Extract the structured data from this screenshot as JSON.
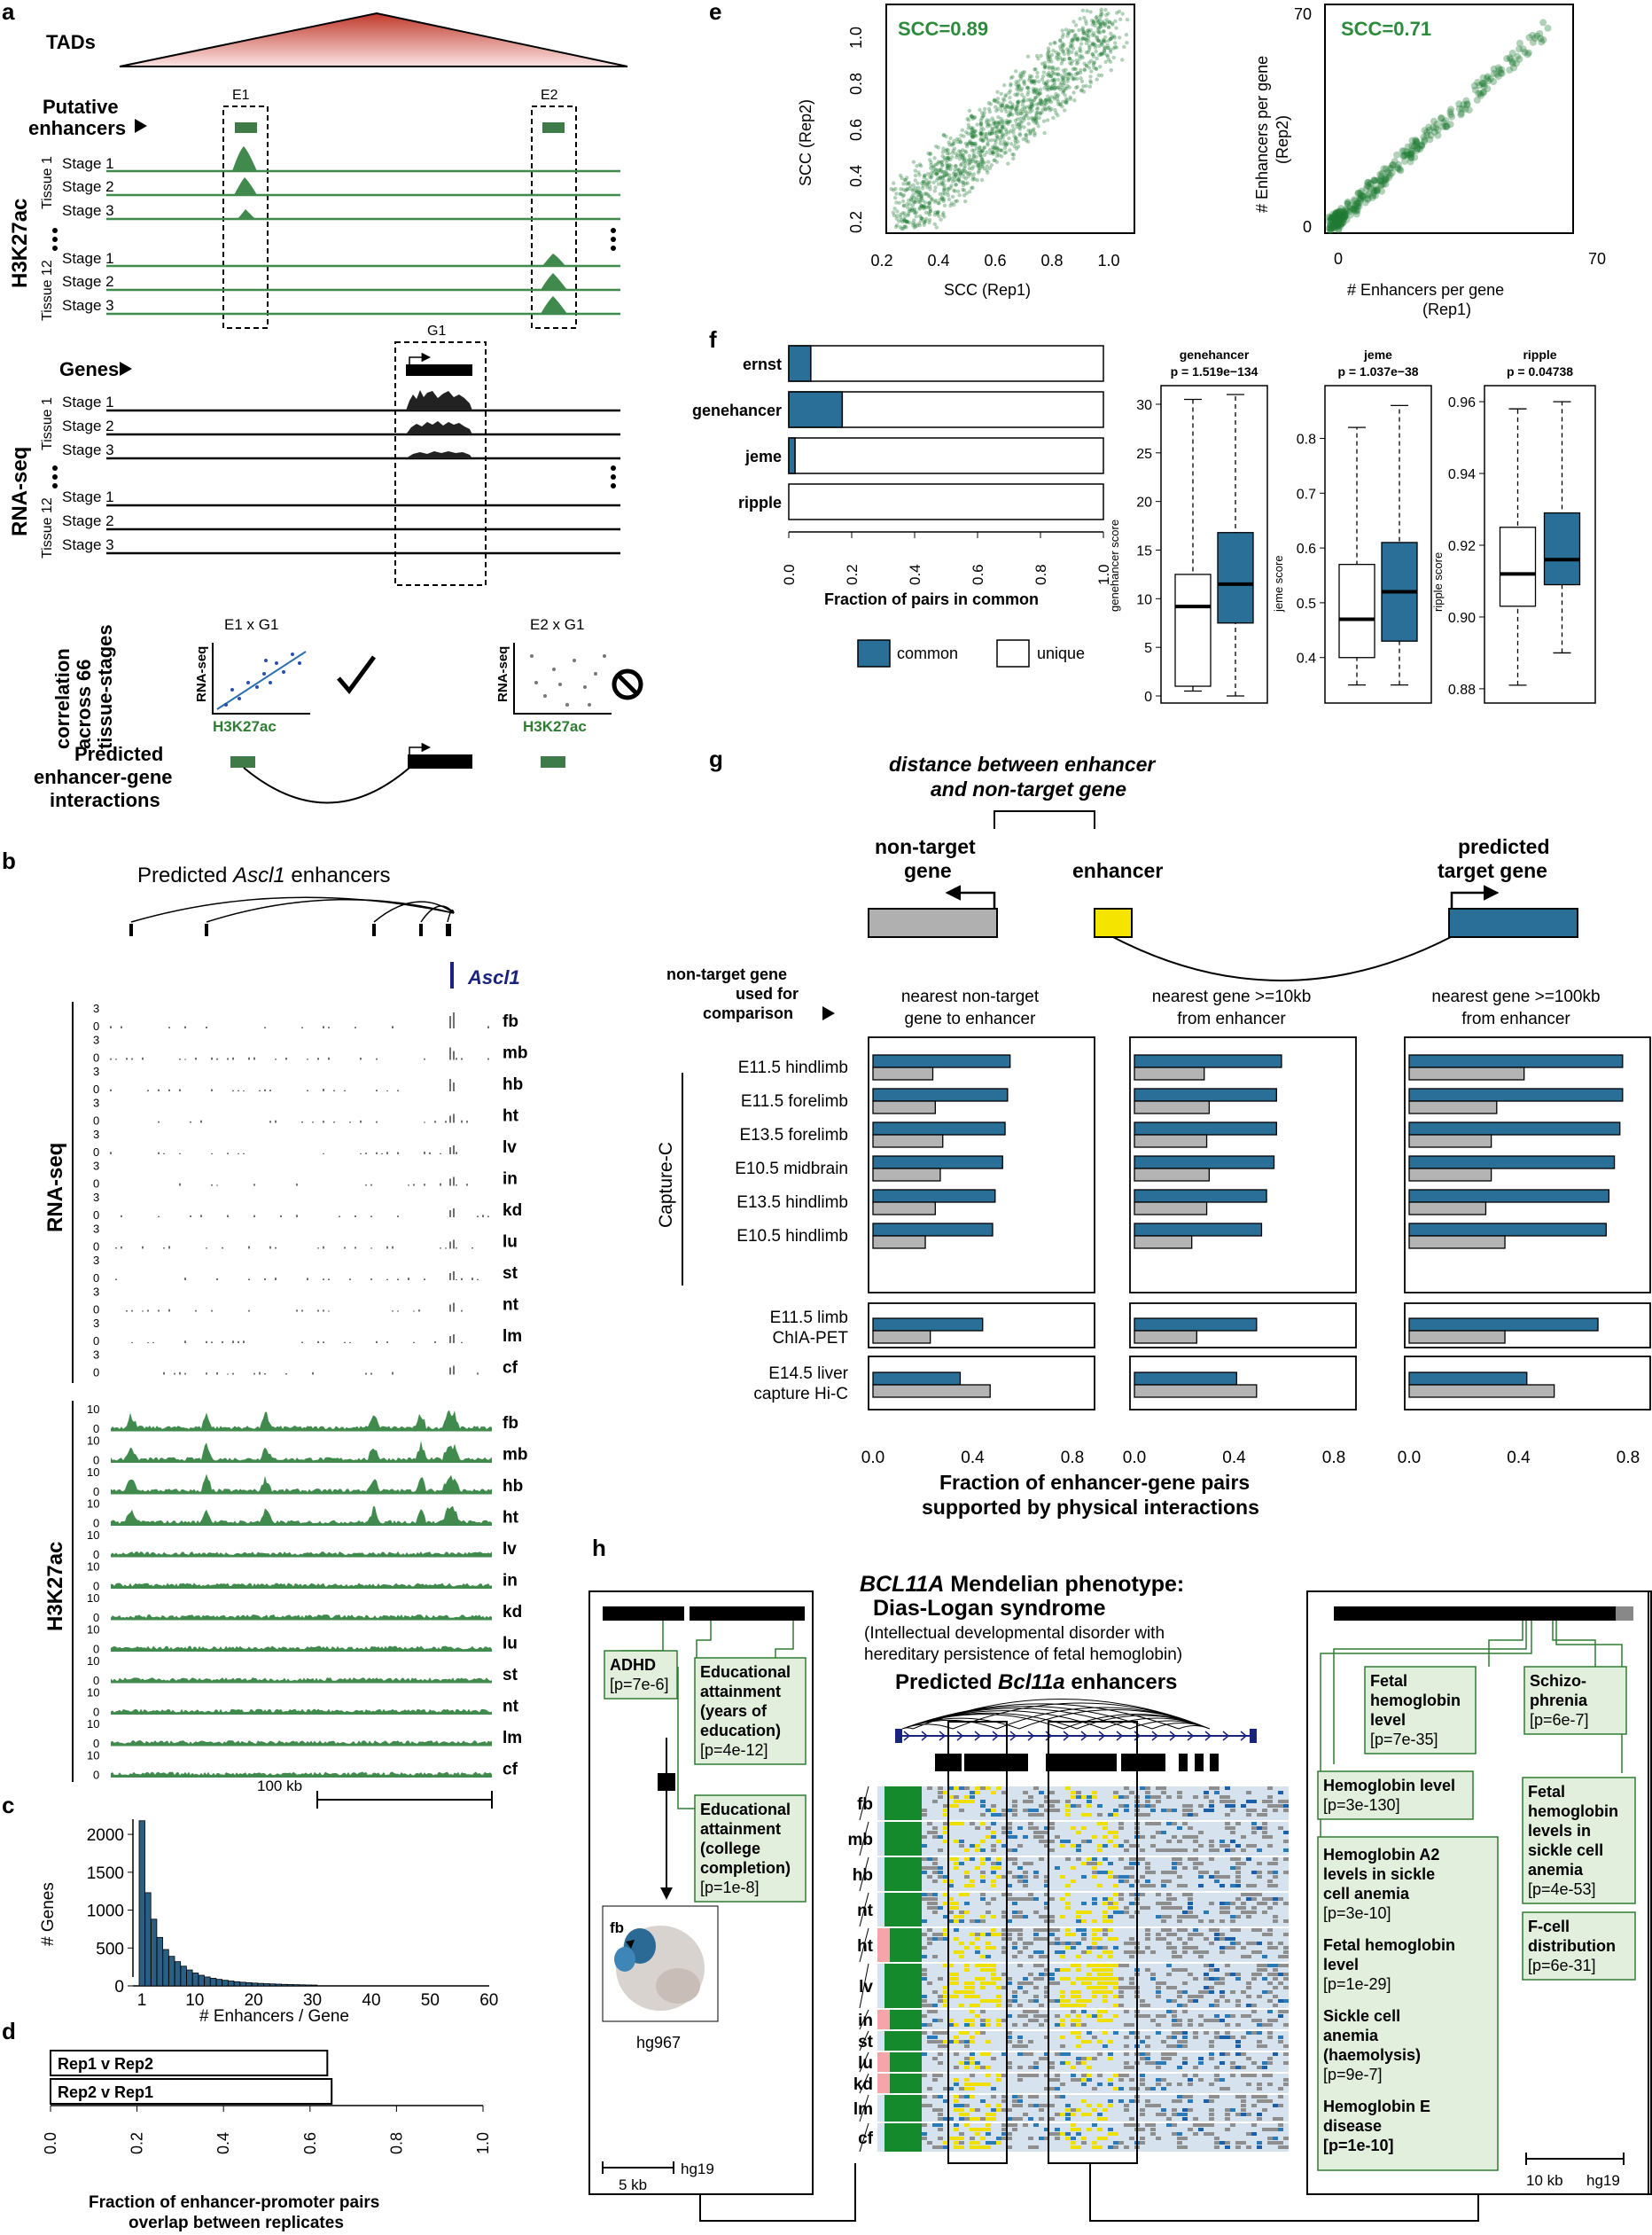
{
  "panel_letters": [
    "a",
    "b",
    "c",
    "d",
    "e",
    "f",
    "g",
    "h"
  ],
  "panel_a": {
    "tads": "TADs",
    "putative": "Putative",
    "enhancers": "enhancers",
    "e1": "E1",
    "e2": "E2",
    "g1": "G1",
    "h3k27ac": "H3K27ac",
    "rnaseq": "RNA-seq",
    "tissue1": "Tissue 1",
    "tissue12": "Tissue 12",
    "stages": [
      "Stage 1",
      "Stage 2",
      "Stage 3"
    ],
    "genes": "Genes",
    "corr": [
      "correlation",
      "across 66",
      "tissue-stages"
    ],
    "e1g1": "E1 x G1",
    "e2g1": "E2 x G1",
    "ax_y": "RNA-seq",
    "ax_x": "H3K27ac",
    "pred": [
      "Predicted",
      "enhancer-gene",
      "interactions"
    ]
  },
  "panel_b": {
    "title_pre": "Predicted ",
    "title_it": "Ascl1",
    "title_post": " enhancers",
    "gene": "Ascl1",
    "rna_label": "RNA-seq",
    "h3_label": "H3K27ac",
    "tissues": [
      "fb",
      "mb",
      "hb",
      "ht",
      "lv",
      "in",
      "kd",
      "lu",
      "st",
      "nt",
      "lm",
      "cf"
    ],
    "rna_ticks": [
      "3",
      "0"
    ],
    "h3_ticks": [
      "10",
      "0"
    ],
    "scale": "100 kb"
  },
  "panel_c": {
    "chart_data": {
      "type": "bar",
      "xlabel": "# Enhancers / Gene",
      "ylabel": "# Genes",
      "xticks": [
        "1",
        "10",
        "20",
        "30",
        "40",
        "50",
        "60"
      ],
      "yticks": [
        "0",
        "500",
        "1000",
        "1500",
        "2000"
      ],
      "ylim": [
        0,
        2200
      ],
      "x": [
        1,
        2,
        3,
        4,
        5,
        6,
        7,
        8,
        9,
        10,
        11,
        12,
        13,
        14,
        15,
        16,
        17,
        18,
        19,
        20,
        21,
        22,
        23,
        24,
        25,
        26,
        27,
        28,
        29,
        30
      ],
      "values": [
        2180,
        1230,
        880,
        640,
        480,
        390,
        320,
        260,
        210,
        170,
        140,
        118,
        100,
        86,
        74,
        64,
        55,
        48,
        42,
        37,
        33,
        29,
        26,
        23,
        20,
        18,
        16,
        14,
        12,
        11
      ]
    }
  },
  "panel_d": {
    "chart_data": {
      "type": "bar",
      "categories": [
        "Rep1 v Rep2",
        "Rep2 v Rep1"
      ],
      "values": [
        0.64,
        0.65
      ],
      "xlabel": "Fraction of enhancer-promoter pairs overlap between replicates",
      "xlim": [
        0,
        1
      ],
      "xticks": [
        "0.0",
        "0.2",
        "0.4",
        "0.6",
        "0.8",
        "1.0"
      ]
    },
    "xlabel_lines": [
      "Fraction of enhancer-promoter pairs",
      "overlap between replicates"
    ]
  },
  "panel_e": {
    "left": {
      "scc": "SCC=0.89",
      "xlabel": "SCC (Rep1)",
      "ylabel": "SCC (Rep2)",
      "xticks": [
        "0.2",
        "0.4",
        "0.6",
        "0.8",
        "1.0"
      ],
      "yticks": [
        "0.2",
        "0.4",
        "0.6",
        "0.8",
        "1.0"
      ]
    },
    "right": {
      "scc": "SCC=0.71",
      "xlabel_lines": [
        "# Enhancers per gene",
        "(Rep1)"
      ],
      "ylabel_lines": [
        "# Enhancers per gene",
        "(Rep2)"
      ],
      "xticks": [
        "0",
        "70"
      ],
      "yticks": [
        "0",
        "70"
      ]
    },
    "color": "#2e8b3e"
  },
  "panel_f": {
    "chart_data": {
      "type": "bar",
      "categories": [
        "ernst",
        "genehancer",
        "jeme",
        "ripple"
      ],
      "series": [
        {
          "name": "common",
          "values": [
            0.07,
            0.17,
            0.02,
            0.0
          ]
        },
        {
          "name": "unique",
          "values": [
            0.93,
            0.83,
            0.98,
            1.0
          ]
        }
      ],
      "xlim": [
        0,
        1
      ],
      "xlabel": "Fraction of pairs in common"
    },
    "xticks": [
      "0.0",
      "0.2",
      "0.4",
      "0.6",
      "0.8",
      "1.0"
    ],
    "legend": [
      "common",
      "unique"
    ],
    "boxes": [
      {
        "name": "genehancer",
        "p": "p = 1.519e−134",
        "ylabel": "genehancer score",
        "yticks": [
          "0",
          "5",
          "10",
          "15",
          "20",
          "25",
          "30"
        ]
      },
      {
        "name": "jeme",
        "p": "p = 1.037e−38",
        "ylabel": "jeme score",
        "yticks": [
          "0.4",
          "0.5",
          "0.6",
          "0.7",
          "0.8"
        ]
      },
      {
        "name": "ripple",
        "p": "p = 0.04738",
        "ylabel": "ripple score",
        "yticks": [
          "0.88",
          "0.90",
          "0.92",
          "0.94",
          "0.96"
        ]
      }
    ],
    "blue": "#2a6f97"
  },
  "panel_g": {
    "distance_lines": [
      "distance between enhancer",
      "and non-target gene"
    ],
    "nontarget": [
      "non-target",
      "gene"
    ],
    "enhancer": "enhancer",
    "predicted": [
      "predicted",
      "target gene"
    ],
    "used_for": [
      "non-target gene",
      "used for",
      "comparison"
    ],
    "col_titles": [
      [
        "nearest non-target",
        "gene to enhancer"
      ],
      [
        "nearest gene >=10kb",
        "from enhancer"
      ],
      [
        "nearest gene >=100kb",
        "from enhancer"
      ]
    ],
    "capture_c": "Capture-C",
    "rows": [
      "E11.5 hindlimb",
      "E11.5 forelimb",
      "E13.5 forelimb",
      "E10.5 midbrain",
      "E13.5 hindlimb",
      "E10.5 hindlimb"
    ],
    "chia": [
      "E11.5 limb",
      "ChIA-PET"
    ],
    "liver": [
      "E14.5 liver",
      "capture Hi-C"
    ],
    "xticks": [
      "0.0",
      "0.4",
      "0.8"
    ],
    "xlabel": [
      "Fraction of enhancer-gene pairs",
      "supported by physical interactions"
    ],
    "chart_data": {
      "type": "bar",
      "categories": [
        "E11.5 hindlimb",
        "E11.5 forelimb",
        "E13.5 forelimb",
        "E10.5 midbrain",
        "E13.5 hindlimb",
        "E10.5 hindlimb",
        "E11.5 limb ChIA-PET",
        "E14.5 liver capture Hi-C"
      ],
      "xlim": [
        0,
        0.8
      ],
      "panels": [
        {
          "name": "nearest non-target gene to enhancer",
          "predicted": [
            0.55,
            0.54,
            0.53,
            0.52,
            0.49,
            0.48,
            0.44,
            0.35
          ],
          "nontarget": [
            0.24,
            0.25,
            0.28,
            0.27,
            0.25,
            0.21,
            0.23,
            0.47
          ]
        },
        {
          "name": "nearest gene >=10kb from enhancer",
          "predicted": [
            0.59,
            0.57,
            0.57,
            0.56,
            0.53,
            0.51,
            0.49,
            0.41
          ],
          "nontarget": [
            0.28,
            0.3,
            0.29,
            0.3,
            0.29,
            0.23,
            0.25,
            0.49
          ]
        },
        {
          "name": "nearest gene >=100kb from enhancer",
          "predicted": [
            0.78,
            0.78,
            0.77,
            0.75,
            0.73,
            0.72,
            0.69,
            0.43
          ],
          "nontarget": [
            0.42,
            0.32,
            0.3,
            0.3,
            0.28,
            0.35,
            0.35,
            0.53
          ]
        }
      ]
    }
  },
  "panel_h": {
    "adhd": [
      "ADHD",
      "[p=7e-6]"
    ],
    "edu1": [
      "Educational",
      "attainment",
      "(years of",
      "education)",
      "[p=4e-12]"
    ],
    "edu2": [
      "Educational",
      "attainment",
      "(college",
      "completion)",
      "[p=1e-8]"
    ],
    "fb": "fb",
    "hg967": "hg967",
    "scale_left": "5 kb",
    "hg19": "hg19",
    "title1_it": "BCL11A",
    "title1_rest": " Mendelian phenotype:",
    "title2": "Dias-Logan syndrome",
    "sub": [
      "(Intellectual developmental disorder with",
      "hereditary persistence of fetal hemoglobin)"
    ],
    "pred_pre": "Predicted ",
    "pred_it": "Bcl11a",
    "pred_post": " enhancers",
    "tissues": [
      "fb",
      "mb",
      "hb",
      "nt",
      "ht",
      "lv",
      "in",
      "st",
      "lu",
      "kd",
      "lm",
      "cf"
    ],
    "fhl": [
      "Fetal",
      "hemoglobin",
      "level",
      "[p=7e-35]"
    ],
    "schizo": [
      "Schizo-",
      "phrenia",
      "[p=6e-7]"
    ],
    "hbl": [
      "Hemoglobin level",
      "[p=3e-130]"
    ],
    "sickle": [
      "Fetal",
      "hemoglobin",
      "levels in",
      "sickle cell",
      "anemia",
      "[p=4e-53]"
    ],
    "fcell": [
      "F-cell",
      "distribution",
      "[p=6e-31]"
    ],
    "hba2": [
      "Hemoglobin A2",
      "levels in sickle",
      "cell anemia",
      "[p=3e-10]"
    ],
    "fhl2": [
      "Fetal hemoglobin",
      "level",
      "[p=1e-29]"
    ],
    "sca": [
      "Sickle cell",
      "anemia",
      "(haemolysis)",
      "[p=9e-7]"
    ],
    "hbe": [
      "Hemoglobin E",
      "disease",
      "[p=1e-10]"
    ],
    "scale_right": "10 kb"
  }
}
